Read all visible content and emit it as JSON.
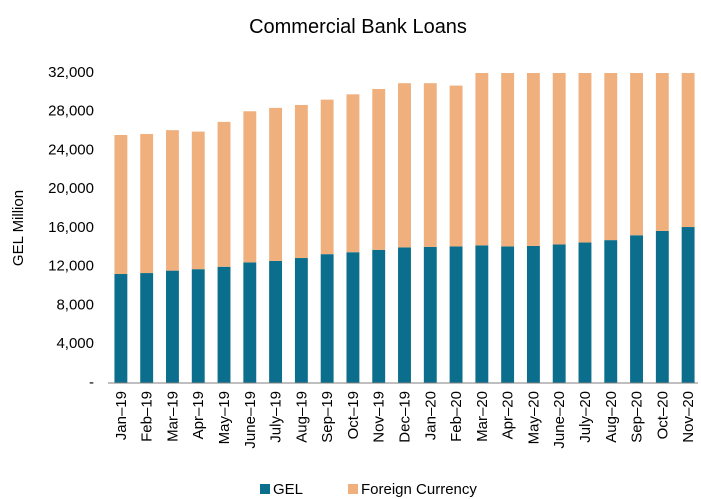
{
  "chart_data": {
    "type": "bar",
    "stacked": true,
    "title": "Commercial Bank Loans",
    "xlabel": "",
    "ylabel": "GEL Million",
    "ylim": [
      0,
      32000
    ],
    "yticks": [
      0,
      4000,
      8000,
      12000,
      16000,
      20000,
      24000,
      28000,
      32000
    ],
    "ytick_labels": [
      "-",
      "4,000",
      "8,000",
      "12,000",
      "16,000",
      "20,000",
      "24,000",
      "28,000",
      "32,000"
    ],
    "grid": false,
    "legend_position": "bottom",
    "categories": [
      "Jan–19",
      "Feb–19",
      "Mar–19",
      "Apr–19",
      "May–19",
      "June–19",
      "July–19",
      "Aug–19",
      "Sep–19",
      "Oct–19",
      "Nov–19",
      "Dec–19",
      "Jan–20",
      "Feb–20",
      "Mar–20",
      "Apr–20",
      "May–20",
      "June–20",
      "July–20",
      "Aug–20",
      "Sep–20",
      "Oct–20",
      "Nov–20"
    ],
    "series": [
      {
        "name": "GEL",
        "color": "#0a6e8c",
        "values": [
          11250,
          11350,
          11600,
          11750,
          12000,
          12450,
          12600,
          12900,
          13300,
          13500,
          13750,
          14000,
          14050,
          14100,
          14200,
          14100,
          14150,
          14300,
          14500,
          14750,
          15250,
          15700,
          16100
        ]
      },
      {
        "name": "Foreign Currency",
        "color": "#f0b07e",
        "values": [
          14350,
          14350,
          14500,
          14200,
          14950,
          15600,
          15800,
          15800,
          15950,
          16300,
          16600,
          16950,
          16900,
          16600,
          17800,
          17900,
          17850,
          17700,
          17500,
          17250,
          16750,
          16300,
          15900
        ]
      }
    ]
  }
}
